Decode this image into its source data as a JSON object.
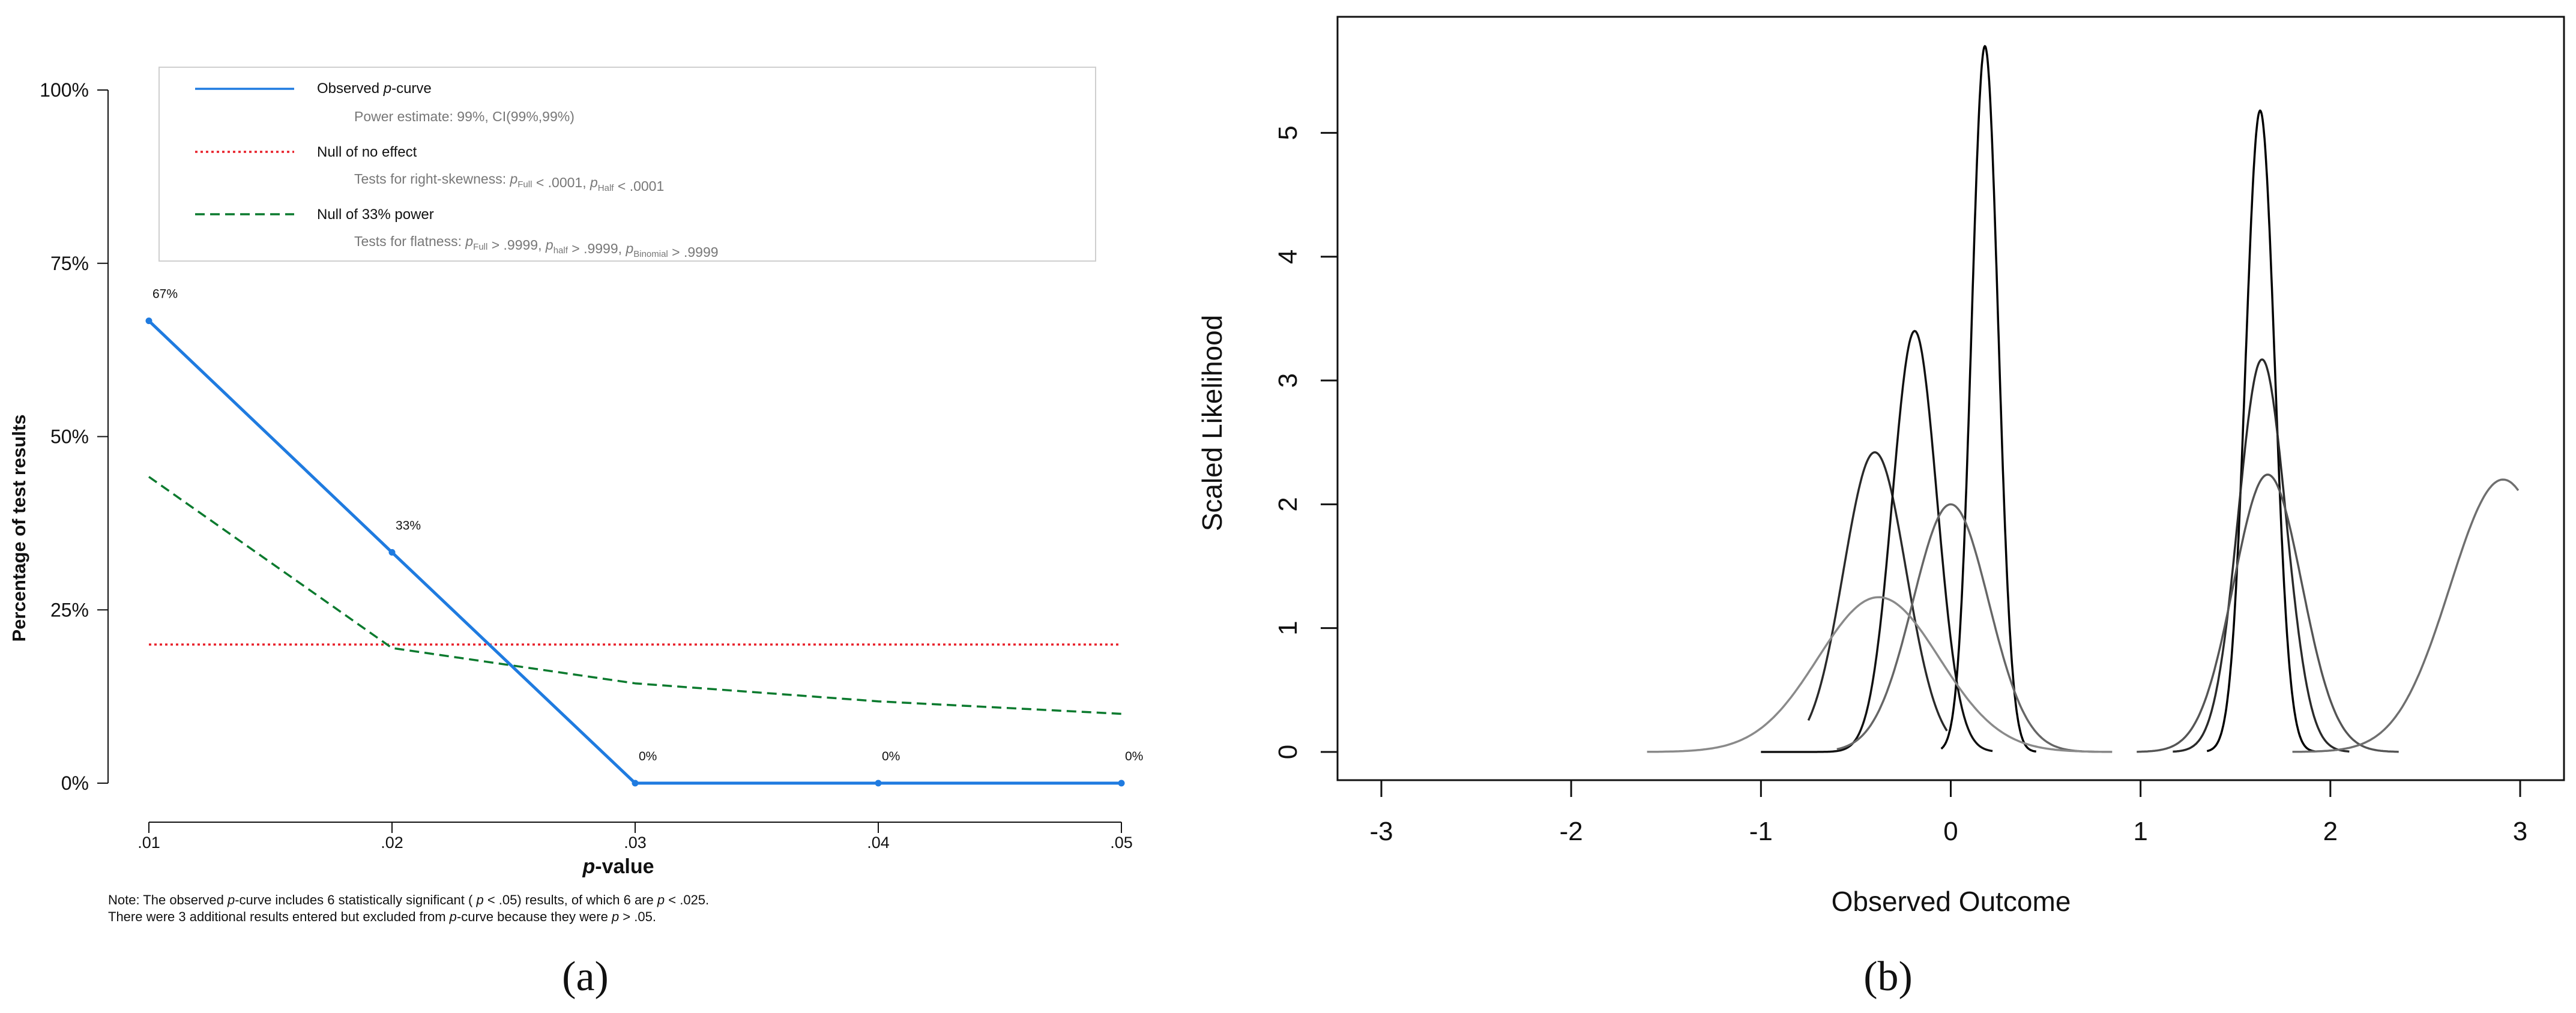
{
  "chart_data": [
    {
      "type": "line",
      "panel_label": "(a)",
      "xlabel": "p-value",
      "ylabel": "Percentage of test results",
      "x": [
        0.01,
        0.02,
        0.03,
        0.04,
        0.05
      ],
      "x_tick_labels": [
        ".01",
        ".02",
        ".03",
        ".04",
        ".05"
      ],
      "y_tick_labels": [
        "0%",
        "25%",
        "50%",
        "75%",
        "100%"
      ],
      "ylim": [
        0,
        100
      ],
      "series": [
        {
          "name": "Observed p-curve",
          "values": [
            66.7,
            33.3,
            0,
            0,
            0
          ],
          "color": "#1f7be0",
          "style": "solid",
          "point_labels": [
            "67%",
            "33%",
            "0%",
            "0%",
            "0%"
          ]
        },
        {
          "name": "Null of no effect",
          "values": [
            20,
            20,
            20,
            20,
            20
          ],
          "color": "#e8202a",
          "style": "dotted"
        },
        {
          "name": "Null of 33% power",
          "values": [
            44.2,
            19.5,
            14.4,
            11.8,
            10.0
          ],
          "color": "#0b7a2e",
          "style": "dashed"
        }
      ],
      "legend": {
        "placement": "top",
        "items": [
          {
            "label": "Observed ",
            "italic": "p",
            "label_tail": "-curve",
            "sub": "Power estimate: 99%, CI(99%,99%)"
          },
          {
            "label": "Null of no effect",
            "sub_parts": [
              "Tests for right-skewness: ",
              "p",
              "Full",
              " < .0001,  ",
              "p",
              "Half",
              " < .0001"
            ]
          },
          {
            "label": "Null of 33% power",
            "sub_parts": [
              "Tests for flatness: ",
              "p",
              "Full",
              " > .9999,  ",
              "p",
              "half",
              " > .9999,  ",
              "p",
              "Binomial",
              " > .9999"
            ]
          }
        ]
      },
      "note_lines": [
        [
          "Note: The observed ",
          "p",
          "-curve includes 6 statistically significant ( ",
          "p",
          " < .05) results, of which 6 are ",
          "p",
          " < .025."
        ],
        [
          "There were 3 additional results entered but excluded from  ",
          "p",
          "-curve because they were ",
          "p",
          " > .05."
        ]
      ]
    },
    {
      "type": "line",
      "panel_label": "(b)",
      "xlabel": "Observed Outcome",
      "ylabel": "Scaled Likelihood",
      "xlim": [
        -3,
        3
      ],
      "ylim": [
        0,
        5.7
      ],
      "x_ticks": [
        -3,
        -2,
        -1,
        0,
        1,
        2,
        3
      ],
      "y_ticks": [
        0,
        1,
        2,
        3,
        4,
        5
      ],
      "curves": [
        {
          "mu": -0.4,
          "peak": 2.42,
          "sigma": 0.165,
          "from": -0.75,
          "to": -0.02,
          "color": "#2a2a2a"
        },
        {
          "mu": -0.19,
          "peak": 3.4,
          "sigma": 0.117,
          "from": -1.0,
          "to": 0.22,
          "color": "#111111"
        },
        {
          "mu": 0.18,
          "peak": 5.7,
          "sigma": 0.07,
          "from": -0.05,
          "to": 0.45,
          "color": "#000000"
        },
        {
          "mu": 0.0,
          "peak": 2.0,
          "sigma": 0.2,
          "from": -0.6,
          "to": 0.85,
          "color": "#666666"
        },
        {
          "mu": -0.38,
          "peak": 1.25,
          "sigma": 0.32,
          "from": -1.6,
          "to": 0.85,
          "color": "#8a8a8a"
        },
        {
          "mu": 1.63,
          "peak": 5.18,
          "sigma": 0.077,
          "from": 1.35,
          "to": 1.92,
          "color": "#000000"
        },
        {
          "mu": 1.64,
          "peak": 3.17,
          "sigma": 0.125,
          "from": 1.17,
          "to": 2.1,
          "color": "#2a2a2a"
        },
        {
          "mu": 1.67,
          "peak": 2.24,
          "sigma": 0.18,
          "from": 0.98,
          "to": 2.36,
          "color": "#555555"
        },
        {
          "mu": 2.91,
          "peak": 2.2,
          "sigma": 0.28,
          "from": 1.8,
          "to": 2.99,
          "color": "#6f6f6f"
        }
      ]
    }
  ]
}
